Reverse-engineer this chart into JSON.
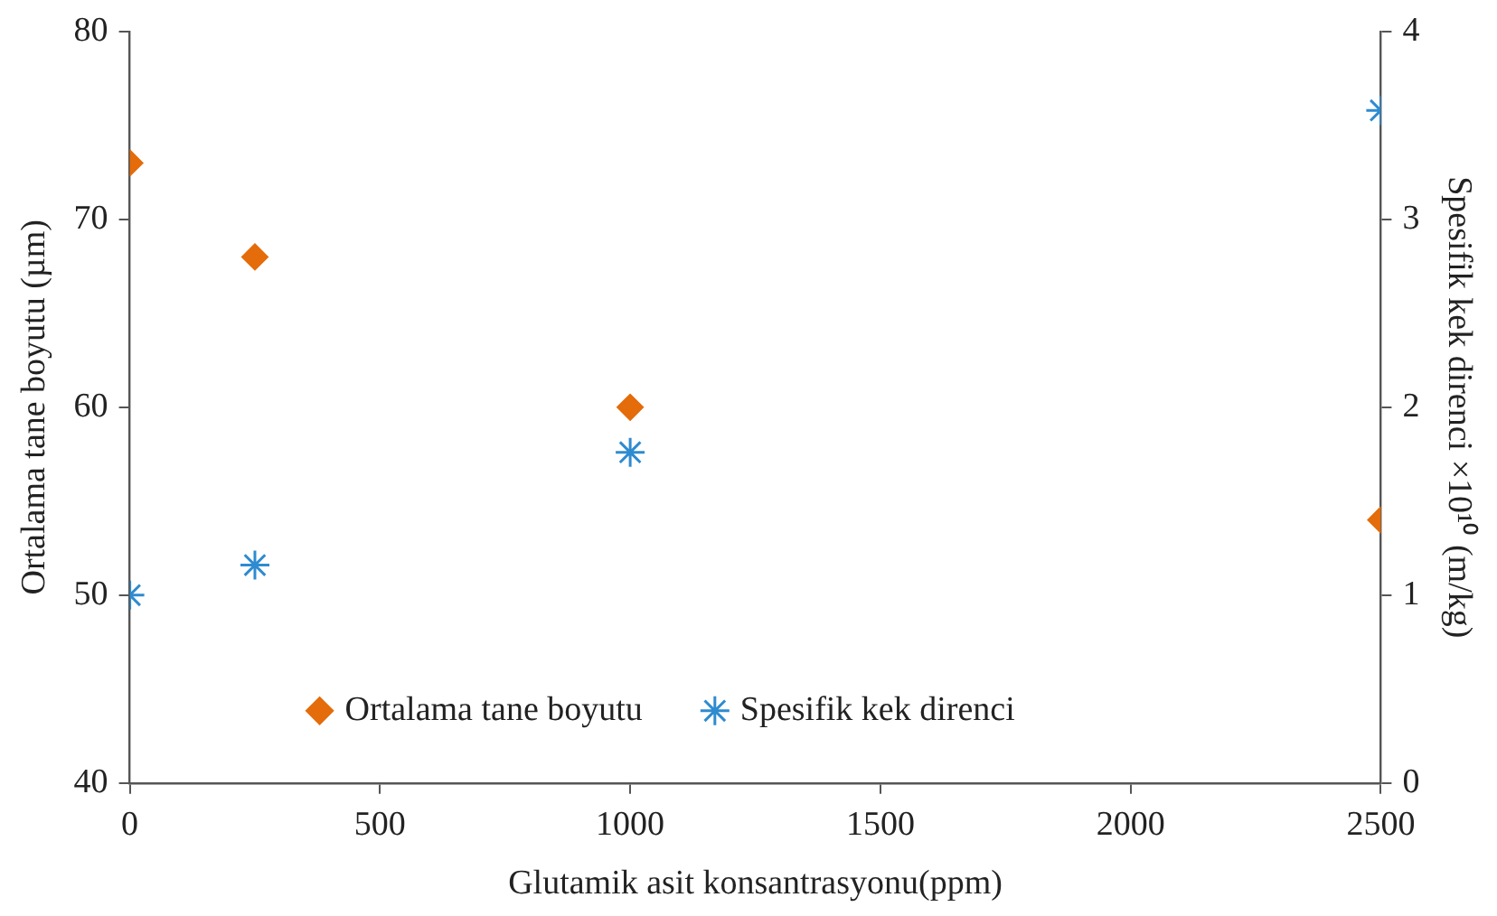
{
  "chart_data": {
    "type": "scatter",
    "xlabel": "Glutamik asit konsantrasyonu(ppm)",
    "ylabel": "Ortalama tane boyutu (µm)",
    "y2label": "Spesifik kek direnci ×10¹⁰ (m/kg)",
    "x": [
      0,
      250,
      1000,
      2500
    ],
    "series": [
      {
        "name": "Ortalama tane boyutu",
        "color": "#e46c0a",
        "marker": "diamond",
        "values": [
          73,
          68,
          60,
          54
        ]
      },
      {
        "name": "Spesifik kek direnci",
        "color": "#2e8bd0",
        "marker": "cross",
        "axis": "y2",
        "values": [
          1.0,
          1.16,
          1.76,
          3.58
        ]
      }
    ],
    "xlim": [
      0,
      2500
    ],
    "xticks": [
      0,
      500,
      1000,
      1500,
      2000,
      2500
    ],
    "ylim": [
      40,
      80
    ],
    "yticks": [
      40,
      50,
      60,
      70,
      80
    ],
    "y2lim": [
      0,
      4
    ],
    "y2ticks": [
      0,
      1,
      2,
      3,
      4
    ],
    "grid": false,
    "legend": "bottom"
  }
}
